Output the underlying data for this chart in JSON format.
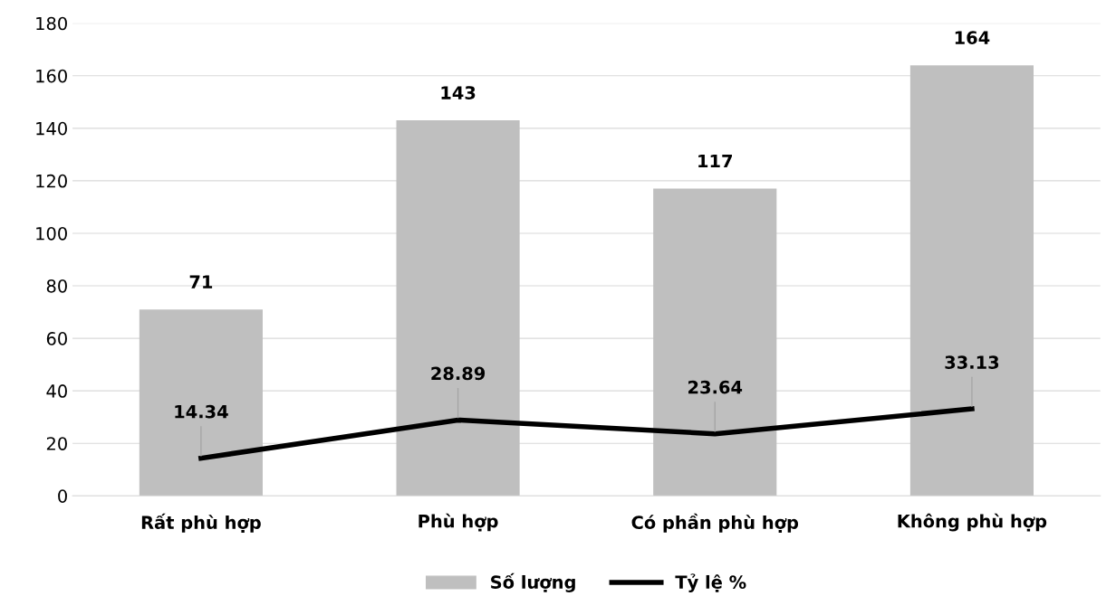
{
  "chart_data": {
    "type": "bar",
    "categories": [
      "Rất phù hợp",
      "Phù hợp",
      "Có phần phù hợp",
      "Không phù hợp"
    ],
    "series": [
      {
        "name": "Số lượng",
        "color": "#bfbfbf",
        "values": [
          71,
          143,
          117,
          164
        ]
      },
      {
        "name": "Tỷ lệ %",
        "type": "line",
        "color": "#000000",
        "values": [
          14.34,
          28.89,
          23.64,
          33.13
        ]
      }
    ],
    "ylim": [
      0,
      180
    ],
    "yticks": [
      0,
      20,
      40,
      60,
      80,
      100,
      120,
      140,
      160,
      180
    ],
    "grid": "y",
    "legend": "bottom",
    "data_labels": true,
    "marker": "none",
    "line_style": "solid"
  }
}
